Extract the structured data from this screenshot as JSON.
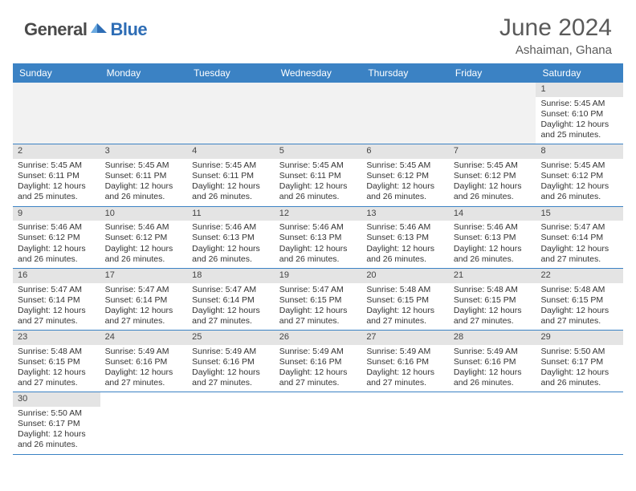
{
  "brand": {
    "part1": "General",
    "part2": "Blue"
  },
  "title": "June 2024",
  "location": "Ashaiman, Ghana",
  "colors": {
    "header_bg": "#3b82c4",
    "header_text": "#ffffff",
    "daynum_bg": "#e4e4e4",
    "row_border": "#3b82c4",
    "blank_bg": "#f2f2f2",
    "text": "#333333",
    "brand_gray": "#4a4a4a",
    "brand_blue": "#2e6db5"
  },
  "day_labels": [
    "Sunday",
    "Monday",
    "Tuesday",
    "Wednesday",
    "Thursday",
    "Friday",
    "Saturday"
  ],
  "weeks": [
    [
      {
        "blank": true
      },
      {
        "blank": true
      },
      {
        "blank": true
      },
      {
        "blank": true
      },
      {
        "blank": true
      },
      {
        "blank": true
      },
      {
        "n": "1",
        "sr": "5:45 AM",
        "ss": "6:10 PM",
        "dl": "12 hours and 25 minutes."
      }
    ],
    [
      {
        "n": "2",
        "sr": "5:45 AM",
        "ss": "6:11 PM",
        "dl": "12 hours and 25 minutes."
      },
      {
        "n": "3",
        "sr": "5:45 AM",
        "ss": "6:11 PM",
        "dl": "12 hours and 26 minutes."
      },
      {
        "n": "4",
        "sr": "5:45 AM",
        "ss": "6:11 PM",
        "dl": "12 hours and 26 minutes."
      },
      {
        "n": "5",
        "sr": "5:45 AM",
        "ss": "6:11 PM",
        "dl": "12 hours and 26 minutes."
      },
      {
        "n": "6",
        "sr": "5:45 AM",
        "ss": "6:12 PM",
        "dl": "12 hours and 26 minutes."
      },
      {
        "n": "7",
        "sr": "5:45 AM",
        "ss": "6:12 PM",
        "dl": "12 hours and 26 minutes."
      },
      {
        "n": "8",
        "sr": "5:45 AM",
        "ss": "6:12 PM",
        "dl": "12 hours and 26 minutes."
      }
    ],
    [
      {
        "n": "9",
        "sr": "5:46 AM",
        "ss": "6:12 PM",
        "dl": "12 hours and 26 minutes."
      },
      {
        "n": "10",
        "sr": "5:46 AM",
        "ss": "6:12 PM",
        "dl": "12 hours and 26 minutes."
      },
      {
        "n": "11",
        "sr": "5:46 AM",
        "ss": "6:13 PM",
        "dl": "12 hours and 26 minutes."
      },
      {
        "n": "12",
        "sr": "5:46 AM",
        "ss": "6:13 PM",
        "dl": "12 hours and 26 minutes."
      },
      {
        "n": "13",
        "sr": "5:46 AM",
        "ss": "6:13 PM",
        "dl": "12 hours and 26 minutes."
      },
      {
        "n": "14",
        "sr": "5:46 AM",
        "ss": "6:13 PM",
        "dl": "12 hours and 26 minutes."
      },
      {
        "n": "15",
        "sr": "5:47 AM",
        "ss": "6:14 PM",
        "dl": "12 hours and 27 minutes."
      }
    ],
    [
      {
        "n": "16",
        "sr": "5:47 AM",
        "ss": "6:14 PM",
        "dl": "12 hours and 27 minutes."
      },
      {
        "n": "17",
        "sr": "5:47 AM",
        "ss": "6:14 PM",
        "dl": "12 hours and 27 minutes."
      },
      {
        "n": "18",
        "sr": "5:47 AM",
        "ss": "6:14 PM",
        "dl": "12 hours and 27 minutes."
      },
      {
        "n": "19",
        "sr": "5:47 AM",
        "ss": "6:15 PM",
        "dl": "12 hours and 27 minutes."
      },
      {
        "n": "20",
        "sr": "5:48 AM",
        "ss": "6:15 PM",
        "dl": "12 hours and 27 minutes."
      },
      {
        "n": "21",
        "sr": "5:48 AM",
        "ss": "6:15 PM",
        "dl": "12 hours and 27 minutes."
      },
      {
        "n": "22",
        "sr": "5:48 AM",
        "ss": "6:15 PM",
        "dl": "12 hours and 27 minutes."
      }
    ],
    [
      {
        "n": "23",
        "sr": "5:48 AM",
        "ss": "6:15 PM",
        "dl": "12 hours and 27 minutes."
      },
      {
        "n": "24",
        "sr": "5:49 AM",
        "ss": "6:16 PM",
        "dl": "12 hours and 27 minutes."
      },
      {
        "n": "25",
        "sr": "5:49 AM",
        "ss": "6:16 PM",
        "dl": "12 hours and 27 minutes."
      },
      {
        "n": "26",
        "sr": "5:49 AM",
        "ss": "6:16 PM",
        "dl": "12 hours and 27 minutes."
      },
      {
        "n": "27",
        "sr": "5:49 AM",
        "ss": "6:16 PM",
        "dl": "12 hours and 27 minutes."
      },
      {
        "n": "28",
        "sr": "5:49 AM",
        "ss": "6:16 PM",
        "dl": "12 hours and 26 minutes."
      },
      {
        "n": "29",
        "sr": "5:50 AM",
        "ss": "6:17 PM",
        "dl": "12 hours and 26 minutes."
      }
    ],
    [
      {
        "n": "30",
        "sr": "5:50 AM",
        "ss": "6:17 PM",
        "dl": "12 hours and 26 minutes."
      },
      {
        "blank": true
      },
      {
        "blank": true
      },
      {
        "blank": true
      },
      {
        "blank": true
      },
      {
        "blank": true
      },
      {
        "blank": true
      }
    ]
  ],
  "labels": {
    "sunrise": "Sunrise:",
    "sunset": "Sunset:",
    "daylight": "Daylight:"
  }
}
